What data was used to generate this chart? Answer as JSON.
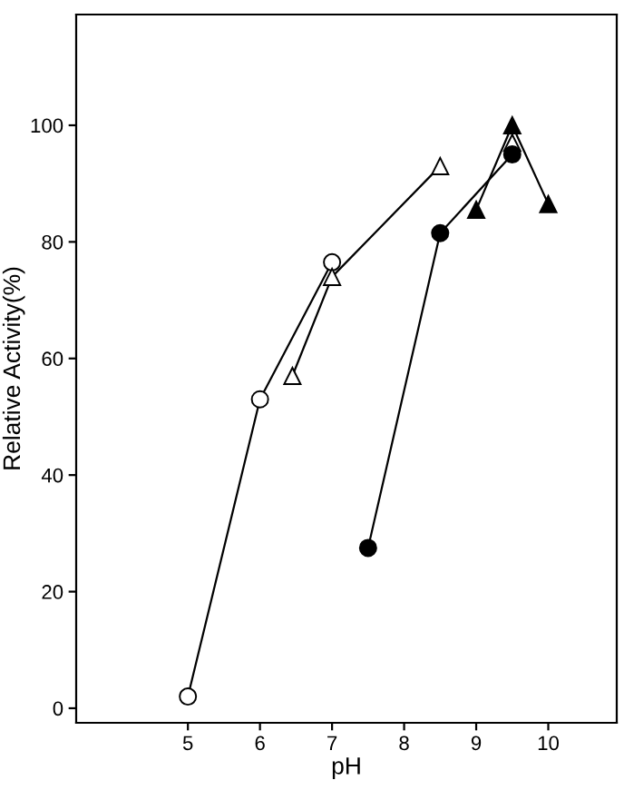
{
  "chart_data": {
    "type": "line",
    "xlabel": "pH",
    "ylabel": "Relative Activity(%)",
    "xlim": [
      3.45,
      10.95
    ],
    "ylim": [
      -2.5,
      119
    ],
    "xticks": [
      5,
      6,
      7,
      8,
      9,
      10
    ],
    "yticks": [
      0,
      20,
      40,
      60,
      80,
      100
    ],
    "grid": false,
    "legend": false,
    "series": [
      {
        "x": [
          5,
          6,
          7
        ],
        "values": [
          2,
          53,
          76.5
        ],
        "color": "#ffffff",
        "marker": "circle"
      },
      {
        "x": [
          6.45,
          7,
          8.5
        ],
        "values": [
          57,
          74,
          93
        ],
        "color": "#ffffff",
        "marker": "triangle"
      },
      {
        "x": [
          9.5
        ],
        "values": [
          97
        ],
        "color": "#ffffff",
        "marker": "triangle",
        "type": "scatter"
      },
      {
        "x": [
          7.5,
          8.5,
          9.5
        ],
        "values": [
          27.5,
          81.5,
          95
        ],
        "color": "#000000",
        "marker": "circle"
      },
      {
        "x": [
          9,
          9.5,
          10
        ],
        "values": [
          85.5,
          100,
          86.5
        ],
        "color": "#000000",
        "marker": "triangle"
      }
    ]
  }
}
